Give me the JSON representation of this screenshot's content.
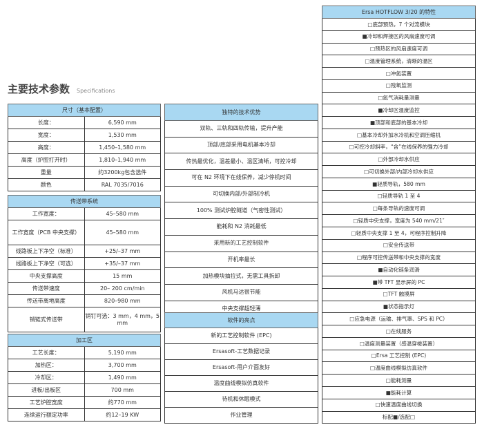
{
  "title": {
    "zh": "主要技术参数",
    "en": "Specifications"
  },
  "dimensions": {
    "header": "尺寸（基本配置）",
    "rows": [
      [
        "长度：",
        "6,590 mm"
      ],
      [
        "宽度：",
        "1,530 mm"
      ],
      [
        "高度：",
        "1,450–1,580 mm"
      ],
      [
        "高度（炉腔打开时）",
        "1,810–1,940 mm"
      ],
      [
        "重量",
        "约3200kg包含选件"
      ],
      [
        "颜色",
        "RAL 7035/7016"
      ]
    ]
  },
  "conveyor": {
    "header": "传送带系统",
    "rows": [
      [
        "工作宽度：",
        "45–580 mm"
      ],
      [
        "工作宽度（PCB 中央支撑）",
        "45–580 mm"
      ],
      [
        "线路板上下净空（标准）",
        "+25/–37 mm"
      ],
      [
        "线路板上下净空（可选）",
        "+35/–37 mm"
      ],
      [
        "中央支撑高度",
        "15 mm"
      ],
      [
        "传送带速度",
        "20– 200 cm/min"
      ],
      [
        "传送带离地高度",
        "820–980 mm"
      ],
      [
        "销链式传送带",
        "销钉可选：3 mm，4 mm，5 mm"
      ]
    ]
  },
  "process": {
    "header": "加工区",
    "rows": [
      [
        "工艺长度：",
        "5,190 mm"
      ],
      [
        "加热区：",
        "3,700 mm"
      ],
      [
        "冷却区：",
        "1,490 mm"
      ],
      [
        "进板/出板区",
        "700 mm"
      ],
      [
        "工艺炉腔宽度",
        "约770 mm"
      ],
      [
        "连续运行额定功率",
        "约12–19 KW"
      ]
    ]
  },
  "advantages": {
    "header": "独特的技术优势",
    "items": [
      "双轨、三轨和四轨传输，提升产能",
      "顶部/底部采用电机基本冷却",
      "传热最优化，温差最小、温区清晰，可控冷却",
      "可在 N2 环境下在线保养，减少停机时间",
      "可切换内部/外部制冷机",
      "100% 测试炉腔隧道（气密性测试）",
      "能耗和 N2 消耗最低",
      "采用新的工艺控制软件",
      "开机率最长",
      "加热模块抽拉式，无需工具拆卸",
      "风机马达很节能",
      "中央支撑超轻薄"
    ]
  },
  "software": {
    "header": "软件的亮点",
    "items": [
      "新的工艺控制软件 (EPC)",
      "Ersasoft-工艺数据记录",
      "Ersasoft-用户介面友好",
      "温度曲线模拟仿真软件",
      "待机和休眠模式",
      "作业管理"
    ]
  },
  "features": {
    "header": "Ersa HOTFLOW 3/20 的特性",
    "items": [
      "□底部预热，7 个对流模块",
      "■冷却和焊接区的风扇速度可调",
      "□预热区的风扇速度可调",
      "□温度管理系统，清晰的温区",
      "□冲氮装置",
      "□残氧监测",
      "□氮气消耗量测量",
      "■冷却区温度监控",
      "■顶部和底部的基本冷却",
      "□基本冷却外加水冷机和空调压缩机",
      "□可控冷却斜率，“含”在线保养的强力冷却",
      "□外部冷却水供应",
      "□可切换外部/内部冷却水供应",
      "■轻质导轨，580 mm",
      "□轻质导轨 1 至 4",
      "□每条导轨的速度可调",
      "□轻质中央支撑，宽度为 540 mm/21″",
      "□轻质中央支撑 1 至 4，可程序控制升降",
      "□安全传送带",
      "□程序可控传送带和中央支撑的宽度",
      "■自动化链条润滑",
      "■带 TFT 显示屏的 PC",
      "□TFT 触摸屏",
      "■状态指示灯",
      "□应急电源（运输、排气罩、SPS 和 PC）",
      "□在线服务",
      "□温度测量装置（感温穿梭装置）",
      "□Ersa 工艺控制 (EPC)",
      "□温度曲线模拟仿真软件",
      "□能耗测量",
      "■能耗计算",
      "□快速温度曲线切换",
      "标配■/选配□"
    ]
  },
  "colors": {
    "header_bg": "#a9d8f2"
  }
}
